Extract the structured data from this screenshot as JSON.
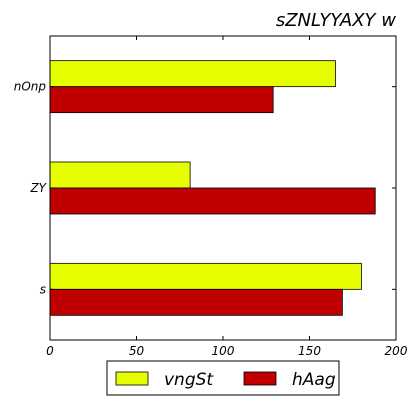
{
  "chart_data": {
    "type": "bar",
    "orientation": "horizontal",
    "title": "sZNLYYAXY w",
    "xlabel": "",
    "ylabel": "",
    "categories": [
      "s",
      "ZY",
      "nOnp"
    ],
    "series": [
      {
        "name": "vngSt",
        "color": "#e5ff00",
        "values": [
          180,
          81,
          165
        ]
      },
      {
        "name": "hAag",
        "color": "#c00000",
        "values": [
          169,
          188,
          129
        ]
      }
    ],
    "xlim": [
      0,
      200
    ],
    "xticks": [
      "0",
      "50",
      "100",
      "150",
      "200"
    ],
    "grid": false,
    "legend_position": "bottom"
  }
}
